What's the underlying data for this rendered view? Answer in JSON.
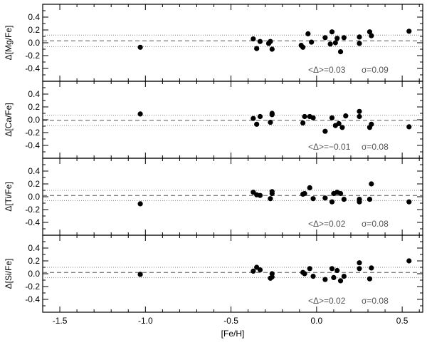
{
  "chart_data": {
    "type": "scatter",
    "xlabel": "[Fe/H]",
    "xlim": [
      -1.6,
      0.62
    ],
    "xticks": [
      "-1.5",
      "-1.0",
      "-0.5",
      "0.0",
      "0.5"
    ],
    "xtick_values": [
      -1.5,
      -1.0,
      -0.5,
      0.0,
      0.5
    ],
    "ylim": [
      -0.6,
      0.6
    ],
    "yticks": [
      "0.4",
      "0.2",
      "0.0",
      "-0.2",
      "-0.4"
    ],
    "ytick_values": [
      0.4,
      0.2,
      0.0,
      -0.2,
      -0.4
    ],
    "panels": [
      {
        "ylabel": "Δ[Mg/Fe]",
        "ann_mean": "<Δ>=0.03",
        "ann_sigma": "σ=0.09",
        "mean": 0.03,
        "sigma": 0.09,
        "x": [
          -1.03,
          -0.37,
          -0.35,
          -0.33,
          -0.28,
          -0.27,
          -0.26,
          -0.09,
          -0.08,
          -0.05,
          -0.03,
          0.05,
          0.08,
          0.09,
          0.11,
          0.12,
          0.14,
          0.16,
          0.25,
          0.25,
          0.31,
          0.32,
          0.54
        ],
        "y": [
          -0.07,
          0.06,
          -0.09,
          0.02,
          -0.01,
          0.02,
          -0.1,
          -0.04,
          -0.07,
          0.14,
          0.01,
          0.08,
          -0.02,
          0.17,
          0.0,
          0.07,
          -0.14,
          0.08,
          0.09,
          -0.01,
          0.17,
          0.11,
          0.18
        ]
      },
      {
        "ylabel": "Δ[Ca/Fe]",
        "ann_mean": "<Δ>=−0.01",
        "ann_sigma": "σ=0.08",
        "mean": -0.01,
        "sigma": 0.08,
        "x": [
          -1.03,
          -0.37,
          -0.35,
          -0.33,
          -0.27,
          -0.26,
          -0.26,
          -0.08,
          -0.07,
          -0.04,
          -0.02,
          0.05,
          0.09,
          0.11,
          0.13,
          0.15,
          0.17,
          0.25,
          0.25,
          0.31,
          0.32,
          0.54
        ],
        "y": [
          0.09,
          0.02,
          -0.07,
          0.05,
          -0.04,
          0.1,
          0.08,
          -0.05,
          0.05,
          0.05,
          0.03,
          -0.18,
          0.03,
          -0.09,
          -0.06,
          -0.12,
          0.06,
          0.13,
          0.05,
          -0.12,
          -0.07,
          -0.11
        ]
      },
      {
        "ylabel": "Δ[Ti/Fe]",
        "ann_mean": "<Δ>=0.02",
        "ann_sigma": "σ=0.08",
        "mean": 0.02,
        "sigma": 0.08,
        "x": [
          -1.03,
          -0.37,
          -0.35,
          -0.33,
          -0.27,
          -0.26,
          -0.26,
          -0.08,
          -0.07,
          -0.04,
          -0.02,
          0.05,
          0.09,
          0.1,
          0.12,
          0.14,
          0.16,
          0.25,
          0.25,
          0.31,
          0.32,
          0.54
        ],
        "y": [
          -0.11,
          0.07,
          0.03,
          0.02,
          -0.03,
          0.08,
          0.05,
          0.04,
          0.05,
          0.14,
          -0.03,
          -0.02,
          -0.08,
          0.05,
          0.07,
          0.05,
          -0.04,
          -0.04,
          -0.08,
          -0.04,
          0.2,
          -0.08
        ]
      },
      {
        "ylabel": "Δ[Si/Fe]",
        "ann_mean": "<Δ>=0.02",
        "ann_sigma": "σ=0.08",
        "mean": 0.02,
        "sigma": 0.08,
        "x": [
          -1.03,
          -0.37,
          -0.35,
          -0.33,
          -0.27,
          -0.26,
          -0.26,
          -0.08,
          -0.07,
          -0.04,
          -0.02,
          0.05,
          0.09,
          0.1,
          0.12,
          0.14,
          0.16,
          0.25,
          0.25,
          0.31,
          0.32,
          0.54
        ],
        "y": [
          -0.01,
          0.04,
          0.1,
          0.06,
          -0.07,
          -0.05,
          0.0,
          0.02,
          0.0,
          0.08,
          -0.04,
          -0.09,
          0.08,
          -0.06,
          0.05,
          -0.11,
          -0.04,
          0.17,
          0.08,
          -0.08,
          0.09,
          0.2
        ]
      }
    ]
  }
}
